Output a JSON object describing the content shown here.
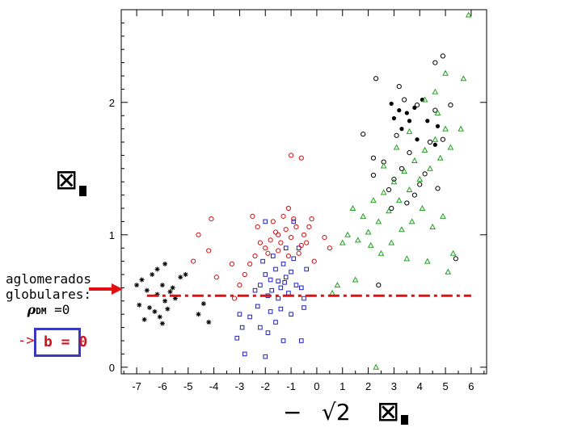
{
  "chart_data": {
    "type": "scatter",
    "title": "",
    "xlim": [
      -7.6,
      6.6
    ],
    "ylim": [
      -0.05,
      2.7
    ],
    "x_ticks": [
      "-7",
      "-6",
      "-5",
      "-4",
      "-3",
      "-2",
      "-1",
      "0",
      "1",
      "2",
      "3",
      "4",
      "5",
      "6"
    ],
    "y_ticks": [
      "0",
      "1",
      "2"
    ],
    "x_tick_values": [
      -7,
      -6,
      -5,
      -4,
      -3,
      -2,
      -1,
      0,
      1,
      2,
      3,
      4,
      5,
      6
    ],
    "y_tick_values": [
      0,
      1,
      2
    ],
    "reference_line": {
      "y": 0.54,
      "color": "#e01010",
      "style": "dashed"
    },
    "series": [
      {
        "marker": "star",
        "color": "#000000",
        "points": [
          [
            -7.0,
            0.62
          ],
          [
            -6.8,
            0.66
          ],
          [
            -6.6,
            0.58
          ],
          [
            -6.4,
            0.7
          ],
          [
            -6.2,
            0.55
          ],
          [
            -6.0,
            0.62
          ],
          [
            -5.9,
            0.5
          ],
          [
            -5.7,
            0.57
          ],
          [
            -6.9,
            0.47
          ],
          [
            -6.5,
            0.45
          ],
          [
            -6.3,
            0.42
          ],
          [
            -6.1,
            0.38
          ],
          [
            -5.8,
            0.44
          ],
          [
            -6.7,
            0.36
          ],
          [
            -6.0,
            0.33
          ],
          [
            -5.6,
            0.6
          ],
          [
            -5.5,
            0.52
          ],
          [
            -4.2,
            0.34
          ],
          [
            -4.6,
            0.4
          ],
          [
            -5.1,
            0.7
          ],
          [
            -5.3,
            0.68
          ],
          [
            -6.2,
            0.74
          ],
          [
            -5.9,
            0.78
          ],
          [
            -4.4,
            0.48
          ]
        ]
      },
      {
        "marker": "open-square",
        "color": "#2020c0",
        "points": [
          [
            -2.2,
            0.62
          ],
          [
            -2.0,
            0.7
          ],
          [
            -1.8,
            0.66
          ],
          [
            -1.6,
            0.74
          ],
          [
            -1.4,
            0.6
          ],
          [
            -1.2,
            0.68
          ],
          [
            -1.0,
            0.72
          ],
          [
            -2.4,
            0.58
          ],
          [
            -1.9,
            0.54
          ],
          [
            -1.5,
            0.52
          ],
          [
            -1.1,
            0.56
          ],
          [
            -0.8,
            0.62
          ],
          [
            -2.1,
            0.8
          ],
          [
            -1.7,
            0.84
          ],
          [
            -1.3,
            0.78
          ],
          [
            -0.9,
            0.82
          ],
          [
            -2.3,
            0.46
          ],
          [
            -1.8,
            0.42
          ],
          [
            -1.4,
            0.44
          ],
          [
            -1.0,
            0.4
          ],
          [
            -2.6,
            0.38
          ],
          [
            -2.9,
            0.3
          ],
          [
            -3.1,
            0.22
          ],
          [
            -2.2,
            0.3
          ],
          [
            -1.6,
            0.34
          ],
          [
            -0.6,
            0.6
          ],
          [
            -0.4,
            0.74
          ],
          [
            -0.7,
            0.9
          ],
          [
            -1.2,
            0.9
          ],
          [
            -2.0,
            1.1
          ],
          [
            -0.9,
            1.1
          ],
          [
            -0.5,
            0.52
          ],
          [
            -3.0,
            0.4
          ],
          [
            -1.9,
            0.26
          ],
          [
            -1.3,
            0.2
          ],
          [
            -0.6,
            0.2
          ],
          [
            -2.8,
            0.1
          ],
          [
            -2.0,
            0.08
          ],
          [
            -0.5,
            0.45
          ],
          [
            -1.5,
            0.65
          ],
          [
            -1.75,
            0.58
          ],
          [
            -1.25,
            0.64
          ]
        ]
      },
      {
        "marker": "open-circle",
        "color": "#d01010",
        "points": [
          [
            -1.8,
            0.96
          ],
          [
            -1.6,
            1.02
          ],
          [
            -1.4,
            0.94
          ],
          [
            -1.2,
            1.04
          ],
          [
            -1.0,
            0.98
          ],
          [
            -0.8,
            1.06
          ],
          [
            -0.6,
            0.92
          ],
          [
            -2.0,
            0.9
          ],
          [
            -2.2,
            0.94
          ],
          [
            -1.9,
            0.86
          ],
          [
            -1.5,
            0.88
          ],
          [
            -1.1,
            0.84
          ],
          [
            -0.7,
            0.86
          ],
          [
            -0.5,
            1.0
          ],
          [
            -0.3,
            1.06
          ],
          [
            -2.4,
            0.84
          ],
          [
            -2.6,
            0.78
          ],
          [
            -1.7,
            1.1
          ],
          [
            -1.3,
            1.14
          ],
          [
            -0.9,
            1.12
          ],
          [
            -1.1,
            1.2
          ],
          [
            -2.8,
            0.7
          ],
          [
            -3.0,
            0.62
          ],
          [
            -3.2,
            0.52
          ],
          [
            -2.5,
            1.14
          ],
          [
            -0.2,
            1.12
          ],
          [
            0.3,
            0.98
          ],
          [
            0.5,
            0.9
          ],
          [
            -0.1,
            0.8
          ],
          [
            -1.0,
            1.6
          ],
          [
            -0.6,
            1.58
          ],
          [
            -4.6,
            1.0
          ],
          [
            -4.2,
            0.88
          ],
          [
            -4.8,
            0.8
          ],
          [
            -3.3,
            0.78
          ],
          [
            -3.9,
            0.68
          ],
          [
            -4.1,
            1.12
          ],
          [
            -2.3,
            1.06
          ],
          [
            -1.5,
            1.0
          ],
          [
            -0.4,
            0.94
          ]
        ]
      },
      {
        "marker": "open-circle",
        "color": "#000000",
        "points": [
          [
            2.3,
            2.18
          ],
          [
            3.4,
            2.02
          ],
          [
            3.9,
            1.98
          ],
          [
            4.6,
            1.94
          ],
          [
            5.2,
            1.98
          ],
          [
            3.1,
            1.75
          ],
          [
            3.6,
            1.62
          ],
          [
            4.4,
            1.7
          ],
          [
            4.9,
            1.72
          ],
          [
            2.6,
            1.55
          ],
          [
            3.3,
            1.5
          ],
          [
            4.2,
            1.46
          ],
          [
            1.8,
            1.76
          ],
          [
            2.2,
            1.45
          ],
          [
            2.8,
            1.34
          ],
          [
            4.0,
            1.38
          ],
          [
            4.7,
            1.35
          ],
          [
            2.9,
            1.2
          ],
          [
            3.5,
            1.24
          ],
          [
            5.4,
            0.82
          ],
          [
            2.4,
            0.62
          ],
          [
            4.9,
            2.35
          ],
          [
            4.6,
            2.3
          ],
          [
            3.2,
            2.12
          ],
          [
            2.2,
            1.58
          ],
          [
            3.0,
            1.42
          ],
          [
            3.8,
            1.3
          ]
        ]
      },
      {
        "marker": "filled-circle",
        "color": "#000000",
        "points": [
          [
            3.2,
            1.94
          ],
          [
            3.5,
            1.92
          ],
          [
            3.8,
            1.96
          ],
          [
            3.6,
            1.86
          ],
          [
            3.3,
            1.8
          ],
          [
            4.3,
            1.86
          ],
          [
            4.7,
            1.82
          ],
          [
            3.9,
            1.72
          ],
          [
            4.6,
            1.68
          ],
          [
            3.0,
            1.88
          ],
          [
            2.9,
            1.99
          ],
          [
            4.1,
            2.02
          ]
        ]
      },
      {
        "marker": "open-triangle",
        "color": "#20a020",
        "points": [
          [
            1.2,
            1.0
          ],
          [
            1.6,
            0.96
          ],
          [
            2.0,
            1.02
          ],
          [
            2.4,
            1.1
          ],
          [
            2.8,
            1.18
          ],
          [
            3.2,
            1.26
          ],
          [
            3.6,
            1.34
          ],
          [
            4.0,
            1.42
          ],
          [
            4.4,
            1.5
          ],
          [
            4.8,
            1.58
          ],
          [
            5.2,
            1.66
          ],
          [
            1.4,
            1.2
          ],
          [
            1.8,
            1.14
          ],
          [
            2.2,
            1.26
          ],
          [
            2.6,
            1.32
          ],
          [
            3.0,
            1.4
          ],
          [
            3.4,
            1.48
          ],
          [
            3.8,
            1.56
          ],
          [
            4.2,
            1.64
          ],
          [
            4.6,
            1.72
          ],
          [
            5.0,
            1.8
          ],
          [
            5.6,
            1.8
          ],
          [
            2.1,
            0.92
          ],
          [
            2.5,
            0.86
          ],
          [
            2.9,
            0.94
          ],
          [
            3.3,
            1.04
          ],
          [
            3.7,
            1.1
          ],
          [
            4.1,
            1.2
          ],
          [
            4.5,
            1.06
          ],
          [
            4.9,
            1.14
          ],
          [
            5.3,
            0.86
          ],
          [
            3.5,
            0.82
          ],
          [
            4.3,
            0.8
          ],
          [
            1.0,
            0.94
          ],
          [
            0.8,
            0.62
          ],
          [
            0.6,
            0.56
          ],
          [
            1.5,
            0.66
          ],
          [
            2.3,
            0.0
          ],
          [
            5.9,
            2.66
          ],
          [
            5.7,
            2.18
          ],
          [
            5.0,
            2.22
          ],
          [
            4.6,
            2.08
          ],
          [
            4.2,
            2.02
          ],
          [
            3.6,
            1.78
          ],
          [
            3.1,
            1.66
          ],
          [
            4.7,
            1.92
          ],
          [
            2.6,
            1.52
          ],
          [
            5.1,
            0.72
          ]
        ]
      }
    ]
  },
  "annotation": {
    "line1": "aglomerados",
    "line2": "globulares:",
    "rho_symbol": "ρ",
    "rho_subscript": "DM",
    "rho_value": "=0",
    "arrow": "->",
    "result": "b = 0"
  },
  "colors": {
    "dashed_line": "#e01010",
    "arrow": "#e01010",
    "box": "#3a3ac0",
    "result_text": "#d0101a"
  },
  "icons": {
    "y_axis_label": "boxed-x-glyph",
    "x_axis_label": "minus-sqrt2-boxed-x-glyphs"
  }
}
